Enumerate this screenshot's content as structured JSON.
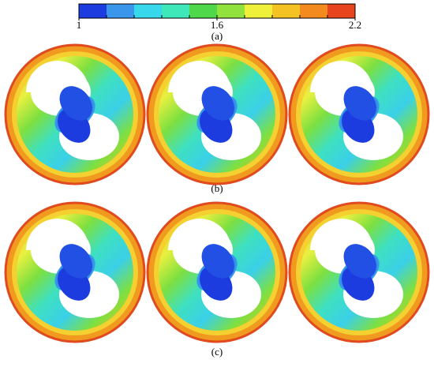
{
  "colorbar": {
    "range": [
      1,
      2.2
    ],
    "ticks": [
      1,
      1.6,
      2.2
    ],
    "colors": [
      "#1c3ce0",
      "#3a96ea",
      "#38d8ec",
      "#3ee8b8",
      "#4ed84a",
      "#92e23e",
      "#eef03a",
      "#f4c222",
      "#f28a1e",
      "#e8441e"
    ]
  },
  "labels": {
    "a": "(a)",
    "b": "(b)",
    "c": "(c)"
  }
}
